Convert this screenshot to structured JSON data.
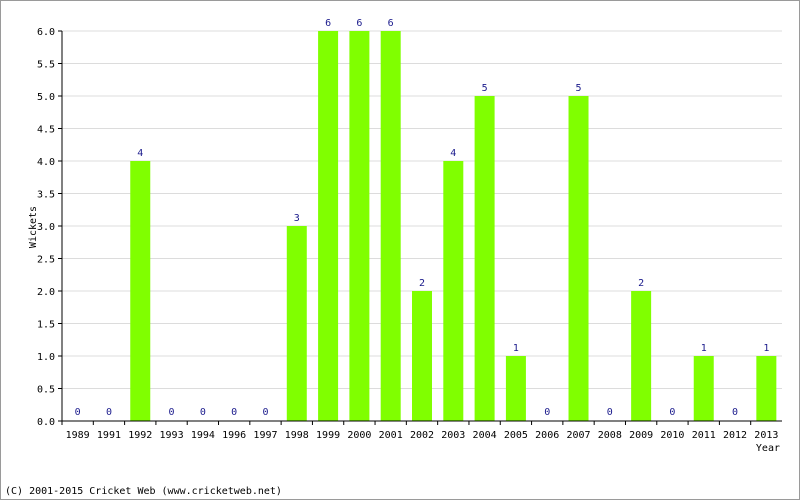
{
  "chart_data": {
    "type": "bar",
    "title": "",
    "xlabel": "Year",
    "ylabel": "Wickets",
    "categories": [
      "1989",
      "1991",
      "1992",
      "1993",
      "1994",
      "1996",
      "1997",
      "1998",
      "1999",
      "2000",
      "2001",
      "2002",
      "2003",
      "2004",
      "2005",
      "2006",
      "2007",
      "2008",
      "2009",
      "2010",
      "2011",
      "2012",
      "2013"
    ],
    "values": [
      0,
      0,
      4,
      0,
      0,
      0,
      0,
      3,
      6,
      6,
      6,
      2,
      4,
      5,
      1,
      0,
      5,
      0,
      2,
      0,
      1,
      0,
      1
    ],
    "ylim": [
      0,
      6
    ],
    "yticks": [
      "0.0",
      "0.5",
      "1.0",
      "1.5",
      "2.0",
      "2.5",
      "3.0",
      "3.5",
      "4.0",
      "4.5",
      "5.0",
      "5.5",
      "6.0"
    ],
    "grid": true,
    "colors": {
      "bar": "#80ff00",
      "grid": "#dcdcdc",
      "axis": "#000000",
      "data_label": "#1a1a8c"
    }
  },
  "footer": {
    "copyright": "(C) 2001-2015 Cricket Web (www.cricketweb.net)"
  }
}
